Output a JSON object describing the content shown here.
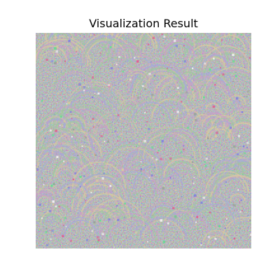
{
  "figure": {
    "title": "Visualization Result"
  },
  "image": {
    "description_name": "feature-visualization-image",
    "base_color": "#b3b8b0",
    "palette": [
      "#c8a0c8",
      "#a0c8a0",
      "#a8a8d8",
      "#d8c8a0",
      "#e06090",
      "#60e090",
      "#8080e0",
      "#f0f0f0",
      "#9aa39a"
    ]
  }
}
